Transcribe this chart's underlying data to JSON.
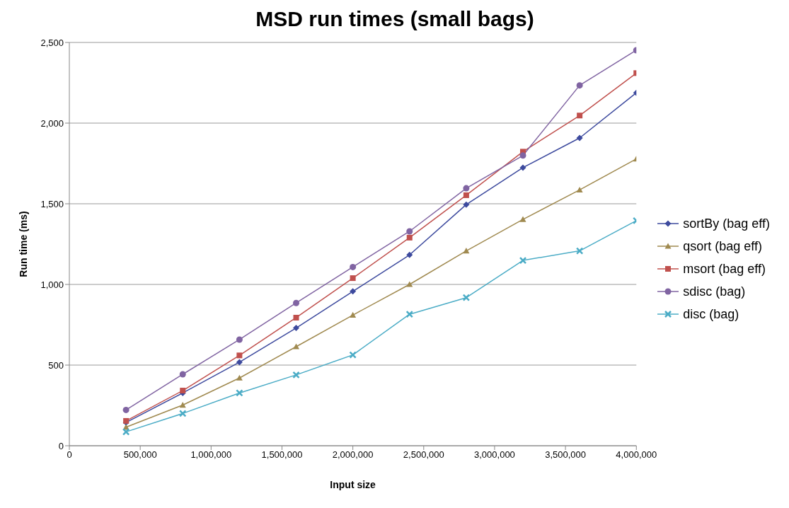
{
  "chart_data": {
    "type": "line",
    "title": "MSD run times (small bags)",
    "xlabel": "Input size",
    "ylabel": "Run time (ms)",
    "x": [
      400000,
      800000,
      1200000,
      1600000,
      2000000,
      2400000,
      2800000,
      3200000,
      3600000,
      4000000
    ],
    "series": [
      {
        "name": "sortBy (bag eff)",
        "color": "#3d4a9e",
        "marker": "diamond",
        "values": [
          144,
          327,
          518,
          730,
          957,
          1183,
          1495,
          1724,
          1908,
          2188
        ]
      },
      {
        "name": "qsort (bag eff)",
        "color": "#a08a50",
        "marker": "triangle",
        "values": [
          115,
          252,
          420,
          614,
          810,
          1000,
          1208,
          1403,
          1586,
          1778
        ]
      },
      {
        "name": "msort (bag eff)",
        "color": "#c0504d",
        "marker": "square",
        "values": [
          154,
          342,
          560,
          794,
          1039,
          1290,
          1553,
          1823,
          2047,
          2310
        ]
      },
      {
        "name": "sdisc (bag)",
        "color": "#8064a2",
        "marker": "circle",
        "values": [
          222,
          443,
          658,
          885,
          1108,
          1329,
          1596,
          1799,
          2234,
          2452
        ]
      },
      {
        "name": "disc (bag)",
        "color": "#4bacc6",
        "marker": "cross",
        "values": [
          86,
          200,
          327,
          439,
          563,
          815,
          918,
          1149,
          1208,
          1395
        ]
      }
    ],
    "xlim": [
      0,
      4000000
    ],
    "xticks": [
      0,
      {
        "value": 500000,
        "label": "500,000"
      },
      {
        "value": 1000000,
        "label": "1,000,000"
      },
      {
        "value": 1500000,
        "label": "1,500,000"
      },
      {
        "value": 2000000,
        "label": "2,000,000"
      },
      {
        "value": 2500000,
        "label": "2,500,000"
      },
      {
        "value": 3000000,
        "label": "3,000,000"
      },
      {
        "value": 3500000,
        "label": "3,500,000"
      },
      {
        "value": 4000000,
        "label": "4,000,000"
      }
    ],
    "ylim": [
      0,
      2500
    ],
    "yticks": [
      0,
      500,
      {
        "value": 1000,
        "label": "1,000"
      },
      {
        "value": 1500,
        "label": "1,500"
      },
      {
        "value": 2000,
        "label": "2,000"
      },
      {
        "value": 2500,
        "label": "2,500"
      }
    ],
    "grid": "y",
    "legend": "right",
    "line_style": "solid"
  }
}
